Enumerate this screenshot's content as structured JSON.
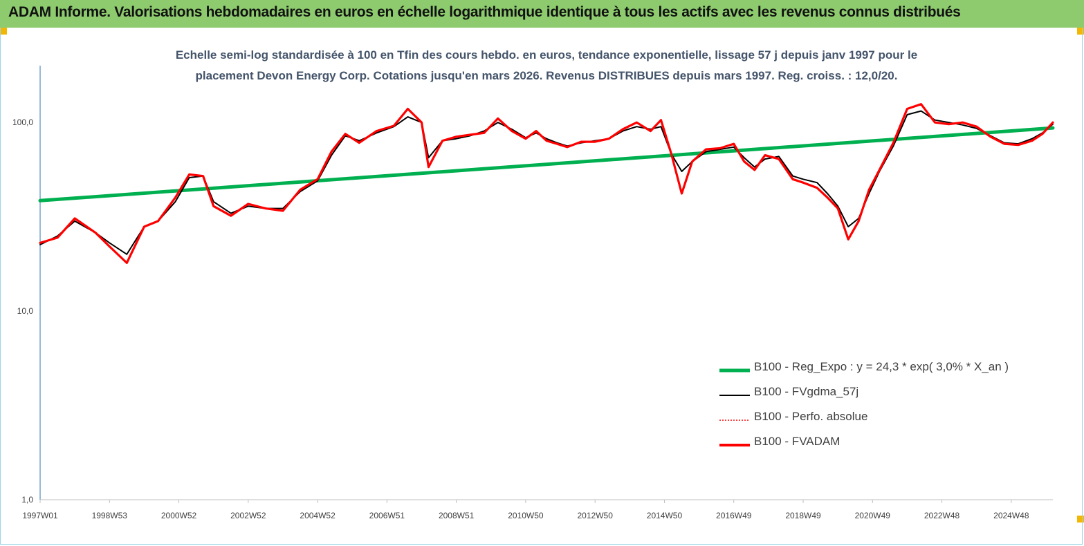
{
  "header": {
    "title": "ADAM Informe. Valorisations hebdomadaires en euros en échelle logarithmique identique à tous les actifs avec les revenus connus distribués"
  },
  "colors": {
    "banner": "#8dcb6e",
    "corner_marks": "#f2b705",
    "regression": "#00b050",
    "moving_average": "#000000",
    "absolute_perf": "#ff0000",
    "fvadam": "#ff0000",
    "subtitle_text": "#44546a"
  },
  "chart_data": {
    "type": "line",
    "title_line1": "Echelle semi-log standardisée à 100 en Tfin des cours hebdo. en euros, tendance exponentielle, lissage 57 j depuis janv 1997 pour le",
    "title_line2": "placement Devon Energy Corp. Cotations jusqu'en mars 2026.  Revenus DISTRIBUES depuis mars 1997. Reg. croiss. : 12,0/20.",
    "y_scale": "log",
    "ylim": [
      1,
      200
    ],
    "y_ticks": [
      "1,0",
      "10,0",
      "100,0"
    ],
    "y_tick_values": [
      1,
      10,
      100
    ],
    "x_range": [
      1997.0,
      2026.2
    ],
    "x_tick_labels": [
      "1997W01",
      "1998W53",
      "2000W52",
      "2002W52",
      "2004W52",
      "2006W51",
      "2008W51",
      "2010W50",
      "2012W50",
      "2014W50",
      "2016W49",
      "2018W49",
      "2020W49",
      "2022W48",
      "2024W48"
    ],
    "x_tick_positions": [
      1997.0,
      1999.0,
      2001.0,
      2003.0,
      2005.0,
      2007.0,
      2009.0,
      2011.0,
      2013.0,
      2015.0,
      2017.0,
      2019.0,
      2021.0,
      2023.0,
      2025.0
    ],
    "grid": false,
    "legend_position": "bottom-right",
    "series": [
      {
        "name": "B100 - Reg_Expo : y = 24,3 * exp( 3,0% *  X_an )",
        "style": "regression",
        "x": [
          1997.0,
          2026.2
        ],
        "values": [
          38.5,
          93.5
        ]
      },
      {
        "name": "B100 - FVgdma_57j",
        "style": "moving_average",
        "x": [
          1997.0,
          1997.5,
          1998.0,
          1998.6,
          1999.0,
          1999.5,
          2000.0,
          2000.4,
          2000.9,
          2001.3,
          2001.7,
          2002.0,
          2002.5,
          2003.0,
          2003.5,
          2004.0,
          2004.5,
          2005.0,
          2005.4,
          2005.8,
          2006.2,
          2006.7,
          2007.2,
          2007.6,
          2008.0,
          2008.2,
          2008.6,
          2009.0,
          2009.4,
          2009.8,
          2010.2,
          2010.6,
          2011.0,
          2011.3,
          2011.6,
          2011.9,
          2012.2,
          2012.6,
          2013.0,
          2013.4,
          2013.8,
          2014.2,
          2014.6,
          2014.9,
          2015.2,
          2015.5,
          2015.8,
          2016.2,
          2016.6,
          2017.0,
          2017.3,
          2017.6,
          2017.9,
          2018.3,
          2018.7,
          2019.0,
          2019.4,
          2019.7,
          2020.0,
          2020.3,
          2020.6,
          2020.9,
          2021.2,
          2021.6,
          2022.0,
          2022.4,
          2022.8,
          2023.2,
          2023.6,
          2024.0,
          2024.4,
          2024.8,
          2025.2,
          2025.6,
          2025.9,
          2026.2
        ],
        "values": [
          22.5,
          25,
          30,
          26,
          23,
          20,
          28,
          30,
          38,
          51,
          52,
          38,
          33,
          36,
          35,
          35,
          43,
          49,
          67,
          85,
          80,
          88,
          95,
          107,
          100,
          65,
          80,
          82,
          85,
          90,
          100,
          92,
          83,
          88,
          82,
          78,
          75,
          78,
          80,
          82,
          90,
          95,
          92,
          95,
          68,
          55,
          62,
          70,
          72,
          74,
          65,
          58,
          64,
          66,
          52,
          50,
          48,
          42,
          36,
          28,
          31,
          42,
          55,
          75,
          110,
          115,
          103,
          100,
          97,
          93,
          85,
          78,
          77,
          82,
          88,
          98
        ]
      },
      {
        "name": "B100 - Perfo. absolue",
        "style": "absolute_perf",
        "x": [
          1997.0,
          1997.5,
          1998.0,
          1998.6,
          1999.0,
          1999.5,
          2000.0,
          2000.4,
          2000.9,
          2001.3,
          2001.7,
          2002.0,
          2002.5,
          2003.0,
          2003.5,
          2004.0,
          2004.5,
          2005.0,
          2005.4,
          2005.8,
          2006.2,
          2006.7,
          2007.2,
          2007.6,
          2008.0,
          2008.2,
          2008.6,
          2009.0,
          2009.4,
          2009.8,
          2010.2,
          2010.6,
          2011.0,
          2011.3,
          2011.6,
          2011.9,
          2012.2,
          2012.6,
          2013.0,
          2013.4,
          2013.8,
          2014.2,
          2014.6,
          2014.9,
          2015.2,
          2015.5,
          2015.8,
          2016.2,
          2016.6,
          2017.0,
          2017.3,
          2017.6,
          2017.9,
          2018.3,
          2018.7,
          2019.0,
          2019.4,
          2019.7,
          2020.0,
          2020.3,
          2020.6,
          2020.9,
          2021.2,
          2021.6,
          2022.0,
          2022.4,
          2022.8,
          2023.2,
          2023.6,
          2024.0,
          2024.4,
          2024.8,
          2025.2,
          2025.6,
          2025.9,
          2026.2
        ],
        "values": [
          23,
          24.5,
          31,
          26,
          22,
          18,
          28,
          30,
          40,
          53,
          52,
          36,
          32,
          37,
          35,
          34,
          44,
          50,
          70,
          87,
          78,
          90,
          96,
          118,
          100,
          58,
          80,
          84,
          86,
          88,
          105,
          90,
          82,
          90,
          80,
          77,
          74,
          79,
          79,
          82,
          92,
          100,
          90,
          103,
          68,
          42,
          62,
          72,
          73,
          77,
          62,
          56,
          67,
          64,
          50,
          48,
          45,
          40,
          35,
          24,
          30,
          44,
          56,
          78,
          118,
          125,
          100,
          98,
          100,
          95,
          84,
          77,
          76,
          80,
          87,
          100
        ]
      },
      {
        "name": "B100 - FVADAM",
        "style": "fvadam",
        "x": [
          1997.0,
          1997.5,
          1998.0,
          1998.6,
          1999.0,
          1999.5,
          2000.0,
          2000.4,
          2000.9,
          2001.3,
          2001.7,
          2002.0,
          2002.5,
          2003.0,
          2003.5,
          2004.0,
          2004.5,
          2005.0,
          2005.4,
          2005.8,
          2006.2,
          2006.7,
          2007.2,
          2007.6,
          2008.0,
          2008.2,
          2008.6,
          2009.0,
          2009.4,
          2009.8,
          2010.2,
          2010.6,
          2011.0,
          2011.3,
          2011.6,
          2011.9,
          2012.2,
          2012.6,
          2013.0,
          2013.4,
          2013.8,
          2014.2,
          2014.6,
          2014.9,
          2015.2,
          2015.5,
          2015.8,
          2016.2,
          2016.6,
          2017.0,
          2017.3,
          2017.6,
          2017.9,
          2018.3,
          2018.7,
          2019.0,
          2019.4,
          2019.7,
          2020.0,
          2020.3,
          2020.6,
          2020.9,
          2021.2,
          2021.6,
          2022.0,
          2022.4,
          2022.8,
          2023.2,
          2023.6,
          2024.0,
          2024.4,
          2024.8,
          2025.2,
          2025.6,
          2025.9,
          2026.2
        ],
        "values": [
          23,
          24.5,
          31,
          26,
          22,
          18,
          28,
          30,
          40,
          53,
          52,
          36,
          32,
          37,
          35,
          34,
          44,
          50,
          70,
          87,
          78,
          90,
          96,
          118,
          100,
          58,
          80,
          84,
          86,
          88,
          105,
          90,
          82,
          90,
          80,
          77,
          74,
          79,
          79,
          82,
          92,
          100,
          90,
          103,
          68,
          42,
          62,
          72,
          73,
          77,
          62,
          56,
          67,
          64,
          50,
          48,
          45,
          40,
          35,
          24,
          30,
          44,
          56,
          78,
          118,
          125,
          100,
          98,
          100,
          95,
          84,
          77,
          76,
          80,
          87,
          100
        ]
      }
    ]
  }
}
